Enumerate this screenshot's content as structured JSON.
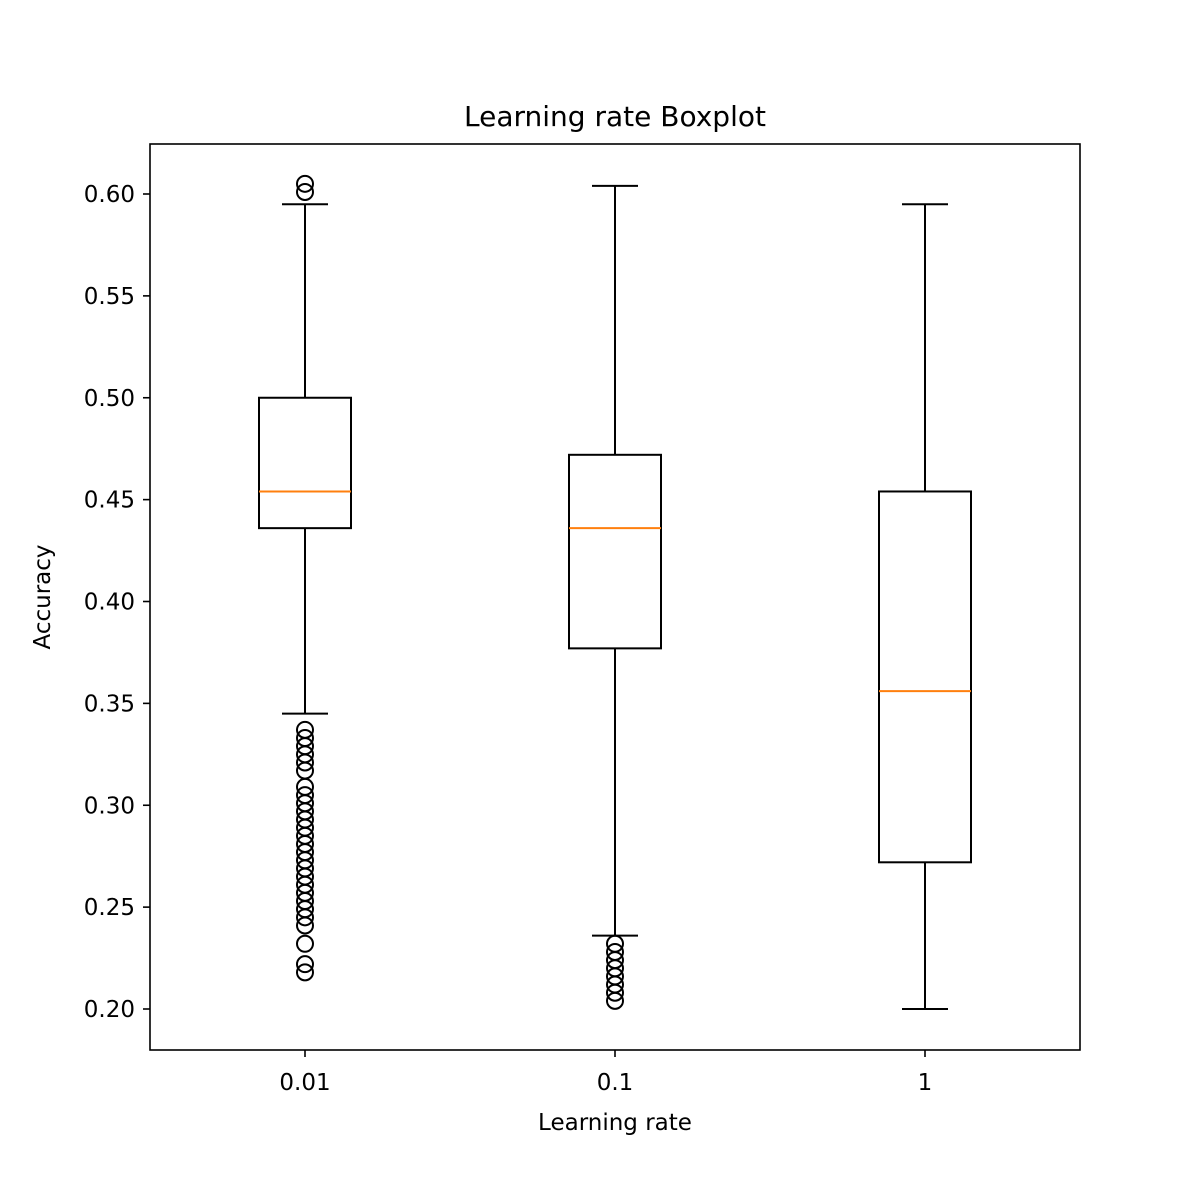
{
  "chart_data": {
    "type": "boxplot",
    "title": "Learning rate Boxplot",
    "xlabel": "Learning rate",
    "ylabel": "Accuracy",
    "categories": [
      "0.01",
      "0.1",
      "1"
    ],
    "ylim": [
      0.18,
      0.625
    ],
    "yticks": [
      0.2,
      0.25,
      0.3,
      0.35,
      0.4,
      0.45,
      0.5,
      0.55,
      0.6
    ],
    "ytick_labels": [
      "0.20",
      "0.25",
      "0.30",
      "0.35",
      "0.40",
      "0.45",
      "0.50",
      "0.55",
      "0.60"
    ],
    "grid": false,
    "boxes": [
      {
        "category": "0.01",
        "whisker_low": 0.345,
        "q1": 0.436,
        "median": 0.454,
        "q3": 0.5,
        "whisker_high": 0.595,
        "outliers": [
          0.605,
          0.601,
          0.337,
          0.333,
          0.329,
          0.325,
          0.321,
          0.317,
          0.309,
          0.305,
          0.301,
          0.297,
          0.293,
          0.289,
          0.285,
          0.281,
          0.277,
          0.273,
          0.269,
          0.265,
          0.261,
          0.257,
          0.253,
          0.249,
          0.245,
          0.241,
          0.232,
          0.222,
          0.218
        ]
      },
      {
        "category": "0.1",
        "whisker_low": 0.236,
        "q1": 0.377,
        "median": 0.436,
        "q3": 0.472,
        "whisker_high": 0.604,
        "outliers": [
          0.232,
          0.228,
          0.224,
          0.22,
          0.216,
          0.212,
          0.208,
          0.204
        ]
      },
      {
        "category": "1",
        "whisker_low": 0.2,
        "q1": 0.272,
        "median": 0.356,
        "q3": 0.454,
        "whisker_high": 0.595,
        "outliers": []
      }
    ],
    "colors": {
      "box": "#000000",
      "median": "#ff7f0e",
      "outlier_edge": "#000000"
    }
  }
}
